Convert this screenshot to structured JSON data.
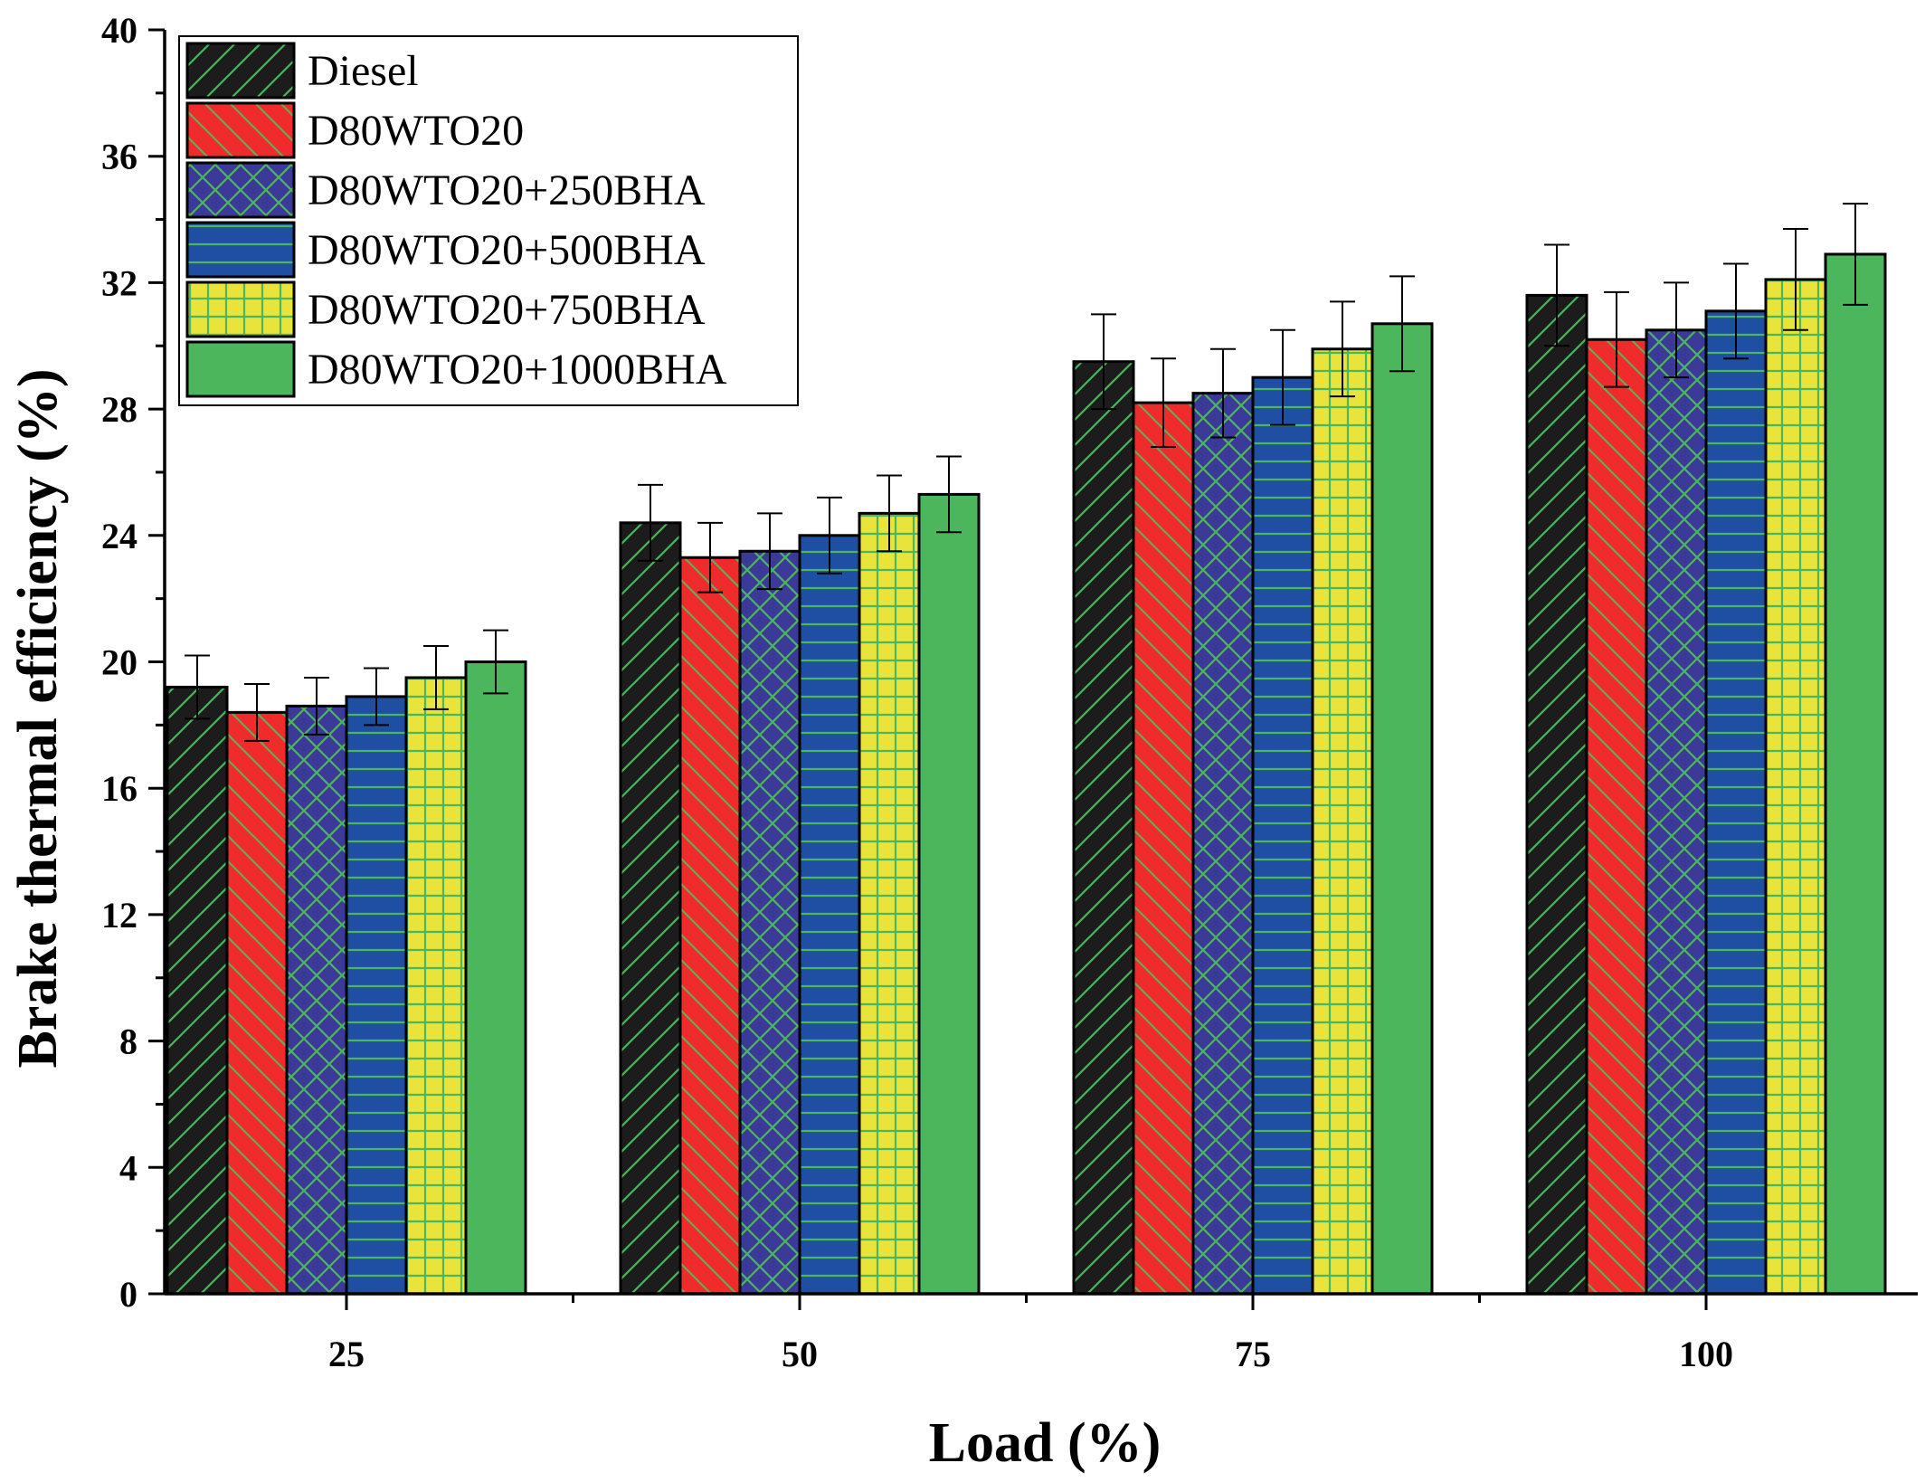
{
  "chart_data": {
    "type": "bar",
    "xlabel": "Load (%)",
    "ylabel": "Brake thermal efficiency (%)",
    "ylim": [
      0,
      40
    ],
    "yticks": [
      0,
      4,
      8,
      12,
      16,
      20,
      24,
      28,
      32,
      36,
      40
    ],
    "categories": [
      "25",
      "50",
      "75",
      "100"
    ],
    "legend_position": "top-left",
    "series": [
      {
        "name": "Diesel",
        "values": [
          19.2,
          24.4,
          29.5,
          31.6
        ],
        "errors": [
          1.0,
          1.2,
          1.5,
          1.6
        ],
        "color": "#1c1c1c",
        "pattern": "diag-up"
      },
      {
        "name": "D80WTO20",
        "values": [
          18.4,
          23.3,
          28.2,
          30.2
        ],
        "errors": [
          0.9,
          1.1,
          1.4,
          1.5
        ],
        "color": "#ef2b2b",
        "pattern": "diag-down"
      },
      {
        "name": "D80WTO20+250BHA",
        "values": [
          18.6,
          23.5,
          28.5,
          30.5
        ],
        "errors": [
          0.9,
          1.2,
          1.4,
          1.5
        ],
        "color": "#3b3a98",
        "pattern": "crosshatch"
      },
      {
        "name": "D80WTO20+500BHA",
        "values": [
          18.9,
          24.0,
          29.0,
          31.1
        ],
        "errors": [
          0.9,
          1.2,
          1.5,
          1.5
        ],
        "color": "#1e4fa3",
        "pattern": "horizontal"
      },
      {
        "name": "D80WTO20+750BHA",
        "values": [
          19.5,
          24.7,
          29.9,
          32.1
        ],
        "errors": [
          1.0,
          1.2,
          1.5,
          1.6
        ],
        "color": "#e9e43c",
        "pattern": "grid"
      },
      {
        "name": "D80WTO20+1000BHA",
        "values": [
          20.0,
          25.3,
          30.7,
          32.9
        ],
        "errors": [
          1.0,
          1.2,
          1.5,
          1.6
        ],
        "color": "#4cb65c",
        "pattern": "none"
      }
    ],
    "pattern_color": "#4cb65c"
  }
}
